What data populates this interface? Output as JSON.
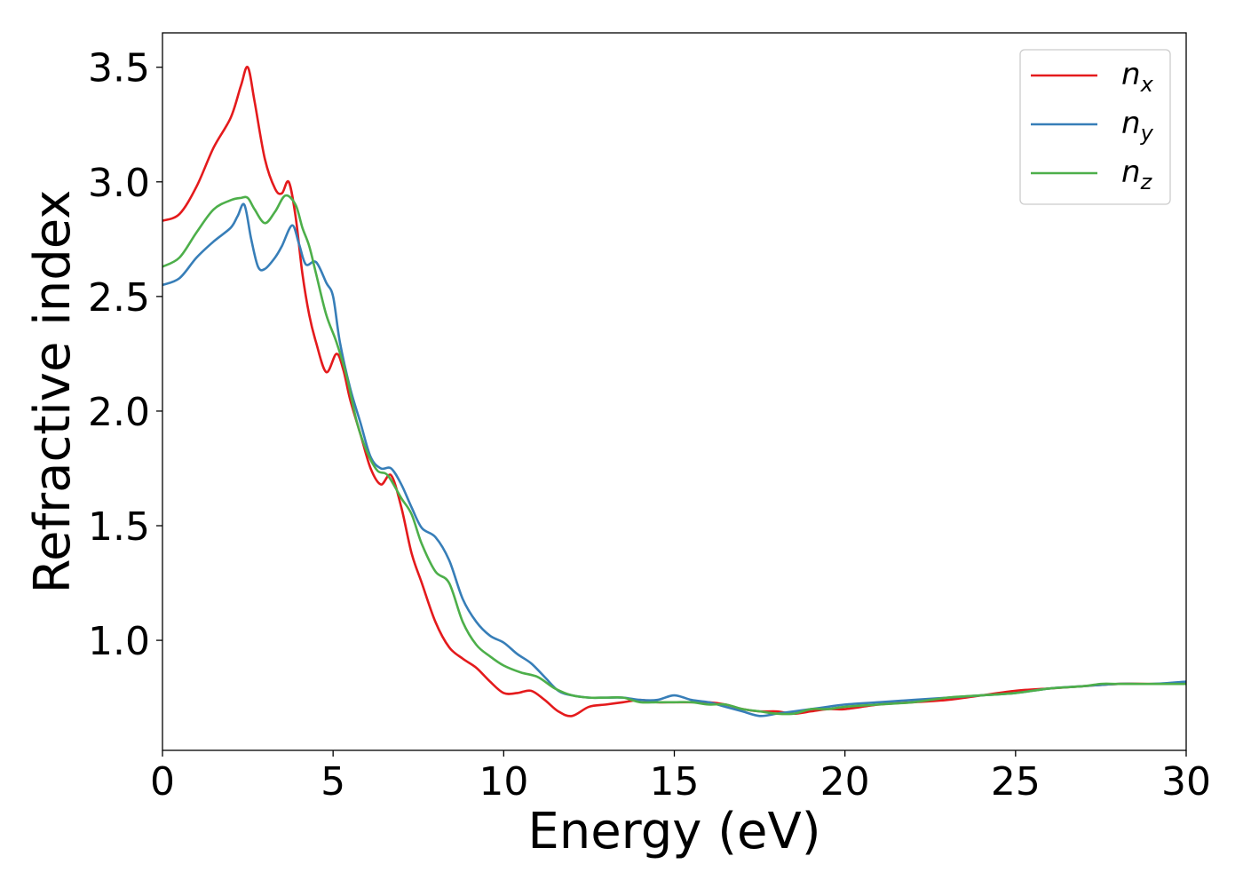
{
  "chart_data": {
    "type": "line",
    "title": "",
    "xlabel": "Energy (eV)",
    "ylabel": "Refractive index",
    "xlim": [
      0,
      30
    ],
    "ylim": [
      0.52,
      3.65
    ],
    "xticks": [
      0,
      5,
      10,
      15,
      20,
      25,
      30
    ],
    "xtick_labels": [
      "0",
      "5",
      "10",
      "15",
      "20",
      "25",
      "30"
    ],
    "yticks": [
      1.0,
      1.5,
      2.0,
      2.5,
      3.0,
      3.5
    ],
    "ytick_labels": [
      "1.0",
      "1.5",
      "2.0",
      "2.5",
      "3.0",
      "3.5"
    ],
    "grid": false,
    "legend_position": "top-right",
    "series": [
      {
        "name": "n",
        "subscript": "x",
        "color": "#e41a1c",
        "x": [
          0,
          0.5,
          1,
          1.5,
          2,
          2.3,
          2.5,
          2.7,
          3,
          3.3,
          3.5,
          3.7,
          3.9,
          4.1,
          4.3,
          4.5,
          4.8,
          5.1,
          5.3,
          5.5,
          5.8,
          6.1,
          6.4,
          6.7,
          7,
          7.3,
          7.6,
          8,
          8.4,
          8.8,
          9.2,
          9.6,
          10,
          10.4,
          10.8,
          11.2,
          11.6,
          12,
          12.5,
          13,
          13.5,
          14,
          14.5,
          15,
          15.5,
          16,
          16.5,
          17,
          17.5,
          18,
          18.5,
          19,
          19.5,
          20,
          21,
          22,
          23,
          24,
          25,
          26,
          27,
          28,
          29,
          30
        ],
        "y": [
          2.83,
          2.86,
          2.98,
          3.15,
          3.28,
          3.42,
          3.5,
          3.35,
          3.1,
          2.97,
          2.95,
          3.0,
          2.85,
          2.6,
          2.42,
          2.3,
          2.17,
          2.25,
          2.18,
          2.05,
          1.9,
          1.75,
          1.68,
          1.72,
          1.58,
          1.38,
          1.25,
          1.08,
          0.97,
          0.92,
          0.88,
          0.82,
          0.77,
          0.77,
          0.78,
          0.74,
          0.69,
          0.67,
          0.71,
          0.72,
          0.73,
          0.74,
          0.73,
          0.73,
          0.73,
          0.73,
          0.72,
          0.7,
          0.69,
          0.69,
          0.68,
          0.69,
          0.7,
          0.7,
          0.72,
          0.73,
          0.74,
          0.76,
          0.78,
          0.79,
          0.8,
          0.81,
          0.81,
          0.81
        ]
      },
      {
        "name": "n",
        "subscript": "y",
        "color": "#377eb8",
        "x": [
          0,
          0.5,
          1,
          1.5,
          2,
          2.2,
          2.4,
          2.6,
          2.8,
          3,
          3.3,
          3.5,
          3.8,
          4,
          4.2,
          4.5,
          4.8,
          5,
          5.2,
          5.5,
          5.8,
          6.1,
          6.4,
          6.7,
          7,
          7.3,
          7.6,
          8,
          8.4,
          8.8,
          9.2,
          9.6,
          10,
          10.4,
          10.8,
          11.2,
          11.6,
          12,
          12.5,
          13,
          13.5,
          14,
          14.5,
          15,
          15.5,
          16,
          16.5,
          17,
          17.5,
          18,
          18.5,
          19,
          19.5,
          20,
          21,
          22,
          23,
          24,
          25,
          26,
          27,
          28,
          29,
          30
        ],
        "y": [
          2.55,
          2.58,
          2.67,
          2.74,
          2.8,
          2.85,
          2.9,
          2.75,
          2.63,
          2.62,
          2.67,
          2.72,
          2.81,
          2.73,
          2.64,
          2.65,
          2.56,
          2.5,
          2.3,
          2.1,
          1.95,
          1.8,
          1.75,
          1.75,
          1.68,
          1.58,
          1.49,
          1.45,
          1.35,
          1.18,
          1.08,
          1.02,
          0.99,
          0.94,
          0.9,
          0.84,
          0.78,
          0.76,
          0.75,
          0.75,
          0.75,
          0.74,
          0.74,
          0.76,
          0.74,
          0.73,
          0.71,
          0.69,
          0.67,
          0.68,
          0.69,
          0.7,
          0.71,
          0.72,
          0.73,
          0.74,
          0.75,
          0.76,
          0.77,
          0.79,
          0.8,
          0.81,
          0.81,
          0.82
        ]
      },
      {
        "name": "n",
        "subscript": "z",
        "color": "#4daf4a",
        "x": [
          0,
          0.5,
          1,
          1.5,
          2,
          2.3,
          2.5,
          2.7,
          3,
          3.3,
          3.6,
          3.9,
          4.1,
          4.3,
          4.5,
          4.8,
          5.1,
          5.4,
          5.7,
          6,
          6.3,
          6.6,
          7,
          7.3,
          7.6,
          8,
          8.4,
          8.8,
          9.2,
          9.6,
          10,
          10.5,
          11,
          11.5,
          12,
          12.5,
          13,
          13.5,
          14,
          14.5,
          15,
          15.5,
          16,
          16.5,
          17,
          17.5,
          18,
          18.5,
          19,
          19.5,
          20,
          21,
          22,
          23,
          24,
          25,
          26,
          27,
          27.5,
          28,
          29,
          30
        ],
        "y": [
          2.63,
          2.67,
          2.78,
          2.88,
          2.92,
          2.93,
          2.93,
          2.88,
          2.82,
          2.87,
          2.94,
          2.9,
          2.8,
          2.72,
          2.6,
          2.42,
          2.3,
          2.15,
          1.95,
          1.82,
          1.74,
          1.72,
          1.62,
          1.55,
          1.42,
          1.3,
          1.25,
          1.08,
          0.98,
          0.93,
          0.89,
          0.86,
          0.84,
          0.79,
          0.76,
          0.75,
          0.75,
          0.75,
          0.73,
          0.73,
          0.73,
          0.73,
          0.72,
          0.72,
          0.7,
          0.69,
          0.68,
          0.68,
          0.7,
          0.7,
          0.71,
          0.72,
          0.73,
          0.75,
          0.76,
          0.77,
          0.79,
          0.8,
          0.81,
          0.81,
          0.81,
          0.81
        ]
      }
    ]
  }
}
